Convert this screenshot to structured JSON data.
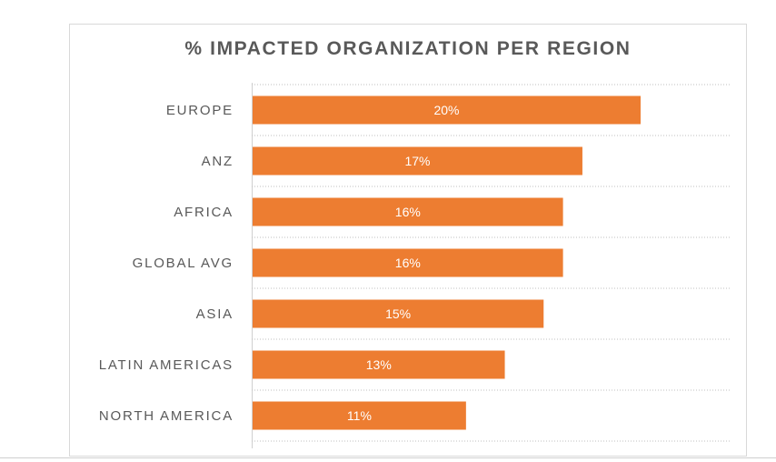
{
  "chart_data": {
    "type": "bar",
    "orientation": "horizontal",
    "title": "% IMPACTED ORGANIZATION PER REGION",
    "categories": [
      "EUROPE",
      "ANZ",
      "AFRICA",
      "GLOBAL AVG",
      "ASIA",
      "LATIN AMERICAS",
      "NORTH AMERICA"
    ],
    "values": [
      20,
      17,
      16,
      16,
      15,
      13,
      11
    ],
    "value_labels": [
      "20%",
      "17%",
      "16%",
      "16%",
      "15%",
      "13%",
      "11%"
    ],
    "unit": "%",
    "xlim": [
      0,
      25
    ],
    "grid": "horizontal dotted separators",
    "legend": "none",
    "colors": {
      "bar": "#ED7D31",
      "title": "#595959",
      "category_label": "#595959",
      "value_label": "#FFFFFF",
      "grid": "#bfbfbf"
    }
  }
}
